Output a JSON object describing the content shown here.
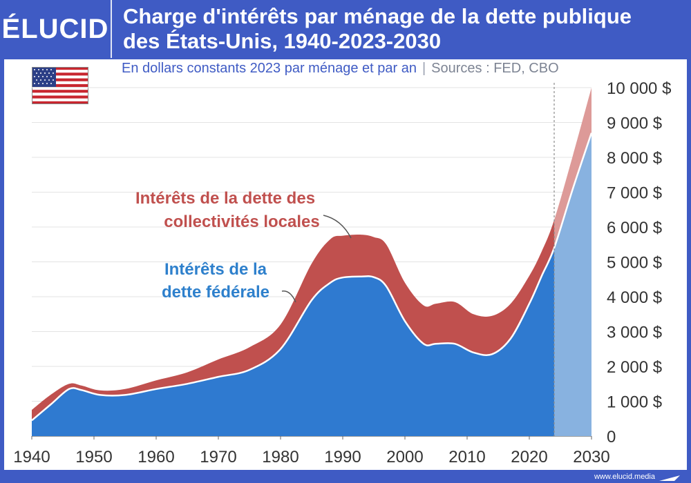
{
  "brand": {
    "logo": "ÉLUCID",
    "url": "www.elucid.media"
  },
  "header": {
    "title_line1": "Charge d'intérêts par ménage de la dette publique",
    "title_line2": "des États-Unis, 1940-2023-2030"
  },
  "subtitle": {
    "units": "En dollars constants 2023 par ménage et par an",
    "separator": "|",
    "sources": "Sources : FED, CBO"
  },
  "colors": {
    "federal": "#2f7ad0",
    "federal_projection": "#88b2e0",
    "local": "#c0504e",
    "local_projection": "#dd9a98",
    "federal_label": "#2e80cc",
    "local_label": "#c0504e",
    "header_bg": "#3f5bc4"
  },
  "chart_data": {
    "type": "area",
    "xlim": [
      1940,
      2030
    ],
    "ylim": [
      0,
      10000
    ],
    "grid": true,
    "projection_start": 2024,
    "x_ticks": [
      "1940",
      "1950",
      "1960",
      "1970",
      "1980",
      "1990",
      "2000",
      "2010",
      "2020",
      "2030"
    ],
    "y_ticks": [
      "0",
      "1 000 $",
      "2 000 $",
      "3 000 $",
      "4 000 $",
      "5 000 $",
      "6 000 $",
      "7 000 $",
      "8 000 $",
      "9 000 $",
      "10 000 $"
    ],
    "annotations": {
      "local_line1": "Intérêts de la dette des",
      "local_line2": "collectivités locales",
      "federal_line1": "Intérêts de la",
      "federal_line2": "dette fédérale"
    },
    "x": [
      1940,
      1943,
      1946,
      1948,
      1951,
      1955,
      1960,
      1965,
      1970,
      1975,
      1980,
      1985,
      1988,
      1990,
      1993,
      1995,
      1997,
      2000,
      2003,
      2005,
      2008,
      2011,
      2014,
      2017,
      2020,
      2022,
      2024,
      2027,
      2030
    ],
    "series": [
      {
        "name": "Intérêts de la dette fédérale",
        "values": [
          450,
          900,
          1350,
          1320,
          1180,
          1180,
          1350,
          1500,
          1700,
          1900,
          2500,
          3900,
          4400,
          4550,
          4580,
          4560,
          4300,
          3300,
          2650,
          2650,
          2650,
          2400,
          2350,
          2800,
          3800,
          4600,
          5400,
          7100,
          8700
        ]
      },
      {
        "name": "Intérêts de la dette des collectivités locales",
        "values": [
          300,
          280,
          150,
          130,
          130,
          170,
          250,
          330,
          500,
          650,
          700,
          1050,
          1250,
          1200,
          1200,
          1150,
          1200,
          1100,
          1100,
          1150,
          1200,
          1100,
          1100,
          1000,
          800,
          700,
          800,
          950,
          1300
        ]
      }
    ]
  }
}
